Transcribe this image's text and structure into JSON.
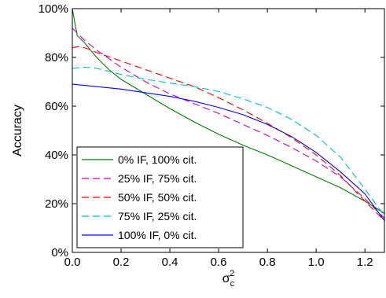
{
  "chart_data": {
    "type": "line",
    "title": "",
    "xlabel": "σ",
    "xlabel_sub": "c",
    "xlabel_sup": "2",
    "ylabel": "Accuracy",
    "xlim": [
      0.0,
      1.28
    ],
    "ylim": [
      0,
      100
    ],
    "x_ticks": [
      0.0,
      0.2,
      0.4,
      0.6,
      0.8,
      1.0,
      1.2
    ],
    "x_tick_labels": [
      "0.0",
      "0.2",
      "0.4",
      "0.6",
      "0.8",
      "1.0",
      "1.2"
    ],
    "y_ticks": [
      0,
      20,
      40,
      60,
      80,
      100
    ],
    "y_tick_labels": [
      "0%",
      "20%",
      "40%",
      "60%",
      "80%",
      "100%"
    ],
    "grid": false,
    "legend_position": "lower-left",
    "series": [
      {
        "name": "0% IF, 100% cit.",
        "color": "#008000",
        "dash": "solid",
        "x": [
          0.0,
          0.02,
          0.05,
          0.1,
          0.15,
          0.2,
          0.3,
          0.4,
          0.5,
          0.6,
          0.7,
          0.8,
          0.9,
          1.0,
          1.1,
          1.2,
          1.28
        ],
        "y": [
          100,
          89,
          86,
          80,
          75,
          71,
          65,
          59,
          53.5,
          48.5,
          44,
          40,
          35.5,
          31,
          26.5,
          21,
          16
        ]
      },
      {
        "name": "25% IF, 75% cit.",
        "color": "#cc00cc",
        "dash": "dashed",
        "x": [
          0.0,
          0.02,
          0.05,
          0.1,
          0.2,
          0.3,
          0.4,
          0.5,
          0.6,
          0.7,
          0.8,
          0.9,
          1.0,
          1.1,
          1.2,
          1.28
        ],
        "y": [
          92,
          90,
          87,
          83,
          76,
          70,
          65,
          61,
          57,
          52.5,
          48,
          43,
          37.5,
          31,
          22,
          14
        ]
      },
      {
        "name": "50% IF, 50% cit.",
        "color": "#ff0000",
        "dash": "dashed",
        "x": [
          0.0,
          0.03,
          0.05,
          0.1,
          0.2,
          0.3,
          0.4,
          0.5,
          0.6,
          0.7,
          0.8,
          0.9,
          1.0,
          1.1,
          1.2,
          1.28
        ],
        "y": [
          84,
          84.5,
          84,
          82,
          78.5,
          75,
          71.5,
          68,
          63.5,
          58.5,
          53,
          47,
          40,
          31.5,
          21,
          13
        ]
      },
      {
        "name": "75% IF, 25% cit.",
        "color": "#00bfbf",
        "dash": "dashed",
        "x": [
          0.0,
          0.05,
          0.1,
          0.2,
          0.3,
          0.4,
          0.5,
          0.6,
          0.7,
          0.8,
          0.9,
          1.0,
          1.1,
          1.2,
          1.28
        ],
        "y": [
          75.5,
          76,
          75.5,
          73,
          71,
          69.5,
          68,
          66,
          63,
          59.5,
          54.5,
          48,
          39,
          26,
          15
        ]
      },
      {
        "name": "100% IF, 0% cit.",
        "color": "#0000ff",
        "dash": "solid",
        "x": [
          0.0,
          0.05,
          0.1,
          0.2,
          0.3,
          0.4,
          0.5,
          0.6,
          0.7,
          0.8,
          0.9,
          1.0,
          1.1,
          1.2,
          1.28
        ],
        "y": [
          69,
          68.5,
          68,
          67,
          65.5,
          64,
          62,
          59.5,
          56.5,
          52.5,
          47.5,
          41,
          33,
          24,
          13
        ]
      }
    ]
  }
}
